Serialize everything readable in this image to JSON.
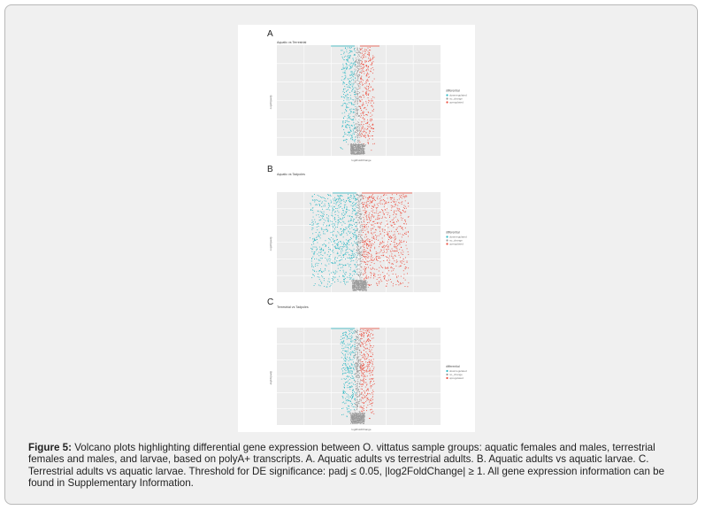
{
  "figure": {
    "panels": [
      {
        "letter": "A",
        "title": "Aquatic vs Terrestrial",
        "ylabel": "-log10(padj)",
        "xlabel": "log2FoldChange",
        "legend_title": "differential",
        "legend": [
          "downregulated",
          "no_change",
          "upregulated"
        ]
      },
      {
        "letter": "B",
        "title": "Aquatic vs Tadpoles",
        "ylabel": "-log10(padj)",
        "xlabel": "log2FoldChange",
        "legend_title": "differential",
        "legend": [
          "downregulated",
          "no_change",
          "upregulated"
        ]
      },
      {
        "letter": "C",
        "title": "Terrestrial vs Tadpoles",
        "ylabel": "-log10(padj)",
        "xlabel": "log2FoldChange",
        "legend_title": "differential",
        "legend": [
          "downregulated",
          "no_change",
          "upregulated"
        ]
      }
    ],
    "colors": {
      "down": "#2bb7c3",
      "none": "#9a9a9a",
      "up": "#ec4d3e"
    }
  },
  "caption": {
    "label": "Figure 5:",
    "text": "Volcano plots highlighting differential gene expression between O. vittatus sample groups: aquatic females and males, terrestrial females and males, and larvae, based on polyA+ transcripts. A. Aquatic adults vs terrestrial adults. B. Aquatic adults vs aquatic larvae. C. Terrestrial adults vs aquatic larvae. Threshold for DE significance: padj ≤ 0.05, |log2FoldChange| ≥ 1. All gene expression information can be found in Supplementary Information."
  }
}
